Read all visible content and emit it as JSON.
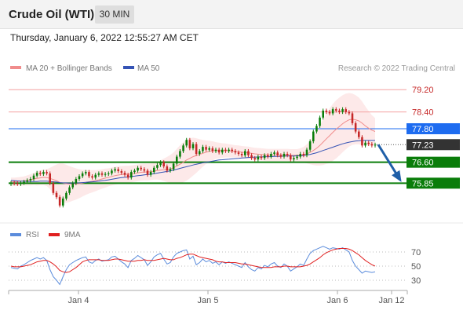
{
  "header": {
    "title": "Crude Oil (WTI)",
    "timeframe": "30 MIN"
  },
  "datetime": "Thursday, January 6, 2022 12:55:27 AM CET",
  "legend": {
    "ma20_label": "MA 20 + Bollinger Bands",
    "ma50_label": "MA 50",
    "credit": "Research © 2022 Trading Central"
  },
  "rsi_legend": {
    "rsi_label": "RSI",
    "ma_label": "9MA"
  },
  "colors": {
    "up": "#0a7d0a",
    "down": "#c62828",
    "ma20": "#f08c8c",
    "ma50": "#3553b5",
    "blue_level": "#1e6cf0",
    "green_level": "#0a7d0a",
    "current_price": "#333333",
    "arrow": "#1f5fa8",
    "rsi": "#5b8cdc",
    "rsi_ma": "#e02020"
  },
  "chart_data": {
    "type": "line",
    "title": "Crude Oil (WTI)",
    "timeframe": "30 MIN",
    "ylim": [
      75.1,
      79.6
    ],
    "x_ticks": [
      "Jan 4",
      "Jan 5",
      "Jan 6",
      "Jan 12"
    ],
    "levels": [
      {
        "value": 79.2,
        "label": "79.20",
        "kind": "red"
      },
      {
        "value": 78.4,
        "label": "78.40",
        "kind": "red"
      },
      {
        "value": 77.8,
        "label": "77.80",
        "kind": "blue"
      },
      {
        "value": 77.23,
        "label": "77.23",
        "kind": "current"
      },
      {
        "value": 76.6,
        "label": "76.60",
        "kind": "green"
      },
      {
        "value": 75.85,
        "label": "75.85",
        "kind": "green"
      }
    ],
    "price_close": [
      75.86,
      75.84,
      75.82,
      75.86,
      75.9,
      75.95,
      76.0,
      76.12,
      76.22,
      76.18,
      76.25,
      76.2,
      75.85,
      75.5,
      75.35,
      75.05,
      75.3,
      75.5,
      75.7,
      75.85,
      76.0,
      76.1,
      76.2,
      76.25,
      76.1,
      76.05,
      76.15,
      76.2,
      76.15,
      76.18,
      76.2,
      76.3,
      76.35,
      76.28,
      76.22,
      76.15,
      76.05,
      76.25,
      76.3,
      76.4,
      76.35,
      76.3,
      76.15,
      76.25,
      76.4,
      76.5,
      76.6,
      76.45,
      76.3,
      76.35,
      76.55,
      76.8,
      77.0,
      77.2,
      77.4,
      77.1,
      77.25,
      76.9,
      77.0,
      77.15,
      77.05,
      77.1,
      77.0,
      77.05,
      76.95,
      77.05,
      77.0,
      77.05,
      77.0,
      76.95,
      76.9,
      76.85,
      77.0,
      76.85,
      76.75,
      76.7,
      76.8,
      76.75,
      76.85,
      76.8,
      76.9,
      76.95,
      76.85,
      76.8,
      76.9,
      76.85,
      76.7,
      76.75,
      76.8,
      76.9,
      76.85,
      77.05,
      77.35,
      77.7,
      77.9,
      78.2,
      78.45,
      78.4,
      78.35,
      78.5,
      78.45,
      78.4,
      78.5,
      78.4,
      78.35,
      78.0,
      77.7,
      77.5,
      77.2,
      77.3,
      77.25,
      77.2,
      77.23
    ],
    "ma20": [
      75.9,
      75.9,
      75.91,
      75.92,
      75.93,
      75.95,
      75.97,
      76.0,
      76.02,
      76.04,
      76.06,
      76.05,
      76.02,
      75.98,
      75.94,
      75.88,
      75.85,
      75.83,
      75.82,
      75.82,
      75.82,
      75.83,
      75.85,
      75.88,
      75.9,
      75.92,
      75.94,
      75.97,
      76.0,
      76.03,
      76.06,
      76.09,
      76.12,
      76.14,
      76.16,
      76.17,
      76.17,
      76.18,
      76.2,
      76.22,
      76.24,
      76.25,
      76.25,
      76.26,
      76.28,
      76.3,
      76.32,
      76.33,
      76.34,
      76.36,
      76.4,
      76.46,
      76.53,
      76.6,
      76.68,
      76.74,
      76.8,
      76.84,
      76.88,
      76.92,
      76.96,
      76.99,
      77.01,
      77.02,
      77.02,
      77.02,
      77.02,
      77.01,
      77.0,
      76.99,
      76.98,
      76.96,
      76.95,
      76.94,
      76.92,
      76.9,
      76.89,
      76.88,
      76.87,
      76.86,
      76.86,
      76.86,
      76.86,
      76.86,
      76.86,
      76.86,
      76.85,
      76.85,
      76.85,
      76.86,
      76.87,
      76.9,
      76.95,
      77.02,
      77.1,
      77.2,
      77.32,
      77.44,
      77.55,
      77.67,
      77.78,
      77.88,
      77.98,
      78.06,
      78.12,
      78.14,
      78.12,
      78.08,
      78.0,
      77.9,
      77.82,
      77.75,
      77.7
    ],
    "ma50": [
      75.95,
      75.94,
      75.93,
      75.92,
      75.92,
      75.91,
      75.91,
      75.91,
      75.91,
      75.92,
      75.92,
      75.92,
      75.91,
      75.9,
      75.89,
      75.87,
      75.86,
      75.86,
      75.85,
      75.85,
      75.86,
      75.86,
      75.87,
      75.88,
      75.89,
      75.9,
      75.91,
      75.92,
      75.94,
      75.95,
      75.97,
      75.99,
      76.01,
      76.03,
      76.05,
      76.06,
      76.07,
      76.09,
      76.1,
      76.12,
      76.13,
      76.15,
      76.16,
      76.17,
      76.19,
      76.21,
      76.23,
      76.25,
      76.27,
      76.29,
      76.32,
      76.35,
      76.38,
      76.41,
      76.44,
      76.47,
      76.5,
      76.53,
      76.55,
      76.58,
      76.6,
      76.62,
      76.64,
      76.66,
      76.68,
      76.69,
      76.7,
      76.71,
      76.72,
      76.73,
      76.74,
      76.75,
      76.76,
      76.77,
      76.78,
      76.78,
      76.79,
      76.79,
      76.8,
      76.8,
      76.8,
      76.81,
      76.81,
      76.81,
      76.82,
      76.82,
      76.82,
      76.82,
      76.83,
      76.83,
      76.84,
      76.86,
      76.88,
      76.91,
      76.94,
      76.98,
      77.02,
      77.06,
      77.1,
      77.14,
      77.18,
      77.22,
      77.26,
      77.29,
      77.32,
      77.34,
      77.36,
      77.37,
      77.38,
      77.38,
      77.38,
      77.38,
      77.38
    ],
    "bb_width": [
      0.15,
      0.15,
      0.15,
      0.16,
      0.16,
      0.18,
      0.2,
      0.22,
      0.25,
      0.26,
      0.28,
      0.3,
      0.38,
      0.48,
      0.58,
      0.68,
      0.7,
      0.68,
      0.64,
      0.6,
      0.56,
      0.52,
      0.48,
      0.45,
      0.42,
      0.4,
      0.38,
      0.36,
      0.35,
      0.34,
      0.32,
      0.32,
      0.32,
      0.32,
      0.3,
      0.3,
      0.3,
      0.3,
      0.3,
      0.3,
      0.3,
      0.3,
      0.3,
      0.3,
      0.3,
      0.32,
      0.35,
      0.4,
      0.45,
      0.5,
      0.55,
      0.62,
      0.68,
      0.72,
      0.74,
      0.72,
      0.68,
      0.62,
      0.55,
      0.48,
      0.42,
      0.38,
      0.34,
      0.3,
      0.28,
      0.26,
      0.25,
      0.24,
      0.23,
      0.22,
      0.22,
      0.22,
      0.22,
      0.22,
      0.22,
      0.22,
      0.22,
      0.22,
      0.22,
      0.22,
      0.22,
      0.22,
      0.22,
      0.22,
      0.22,
      0.22,
      0.22,
      0.22,
      0.22,
      0.24,
      0.28,
      0.34,
      0.42,
      0.52,
      0.62,
      0.72,
      0.82,
      0.9,
      0.98,
      1.02,
      1.04,
      1.04,
      1.02,
      1.0,
      0.96,
      0.92,
      0.88,
      0.84,
      0.78,
      0.7,
      0.62,
      0.54,
      0.48
    ],
    "rsi": [
      48,
      47,
      46,
      50,
      52,
      55,
      58,
      60,
      62,
      60,
      62,
      58,
      45,
      35,
      30,
      24,
      35,
      45,
      52,
      55,
      58,
      60,
      62,
      63,
      56,
      54,
      58,
      60,
      57,
      58,
      59,
      63,
      64,
      60,
      56,
      53,
      48,
      58,
      61,
      65,
      62,
      59,
      51,
      56,
      63,
      66,
      68,
      60,
      53,
      55,
      63,
      68,
      70,
      72,
      73,
      60,
      64,
      52,
      55,
      60,
      56,
      58,
      54,
      56,
      52,
      56,
      54,
      56,
      54,
      52,
      50,
      48,
      55,
      49,
      45,
      43,
      48,
      46,
      51,
      49,
      53,
      55,
      50,
      48,
      53,
      50,
      43,
      46,
      49,
      53,
      51,
      60,
      68,
      72,
      74,
      76,
      78,
      76,
      74,
      76,
      75,
      74,
      76,
      73,
      70,
      58,
      50,
      45,
      40,
      43,
      42,
      41,
      42
    ],
    "rsi_ma": [
      50,
      49,
      49,
      49,
      50,
      51,
      52,
      54,
      56,
      57,
      58,
      58,
      56,
      53,
      49,
      44,
      42,
      41,
      42,
      45,
      48,
      52,
      56,
      58,
      59,
      59,
      59,
      59,
      58,
      58,
      58,
      59,
      60,
      60,
      59,
      58,
      57,
      57,
      57,
      58,
      58,
      59,
      58,
      58,
      58,
      59,
      60,
      61,
      60,
      59,
      59,
      61,
      62,
      64,
      66,
      67,
      67,
      65,
      63,
      62,
      61,
      60,
      59,
      57,
      56,
      56,
      55,
      55,
      55,
      55,
      54,
      53,
      53,
      52,
      51,
      50,
      49,
      48,
      48,
      48,
      48,
      49,
      49,
      49,
      50,
      50,
      49,
      49,
      49,
      49,
      50,
      51,
      53,
      56,
      59,
      62,
      66,
      69,
      71,
      73,
      74,
      75,
      75,
      75,
      74,
      72,
      69,
      66,
      62,
      58,
      55,
      52,
      50
    ],
    "rsi_levels": [
      70,
      50,
      30
    ],
    "forecast_arrow": {
      "from": 77.23,
      "to": 75.85
    }
  }
}
